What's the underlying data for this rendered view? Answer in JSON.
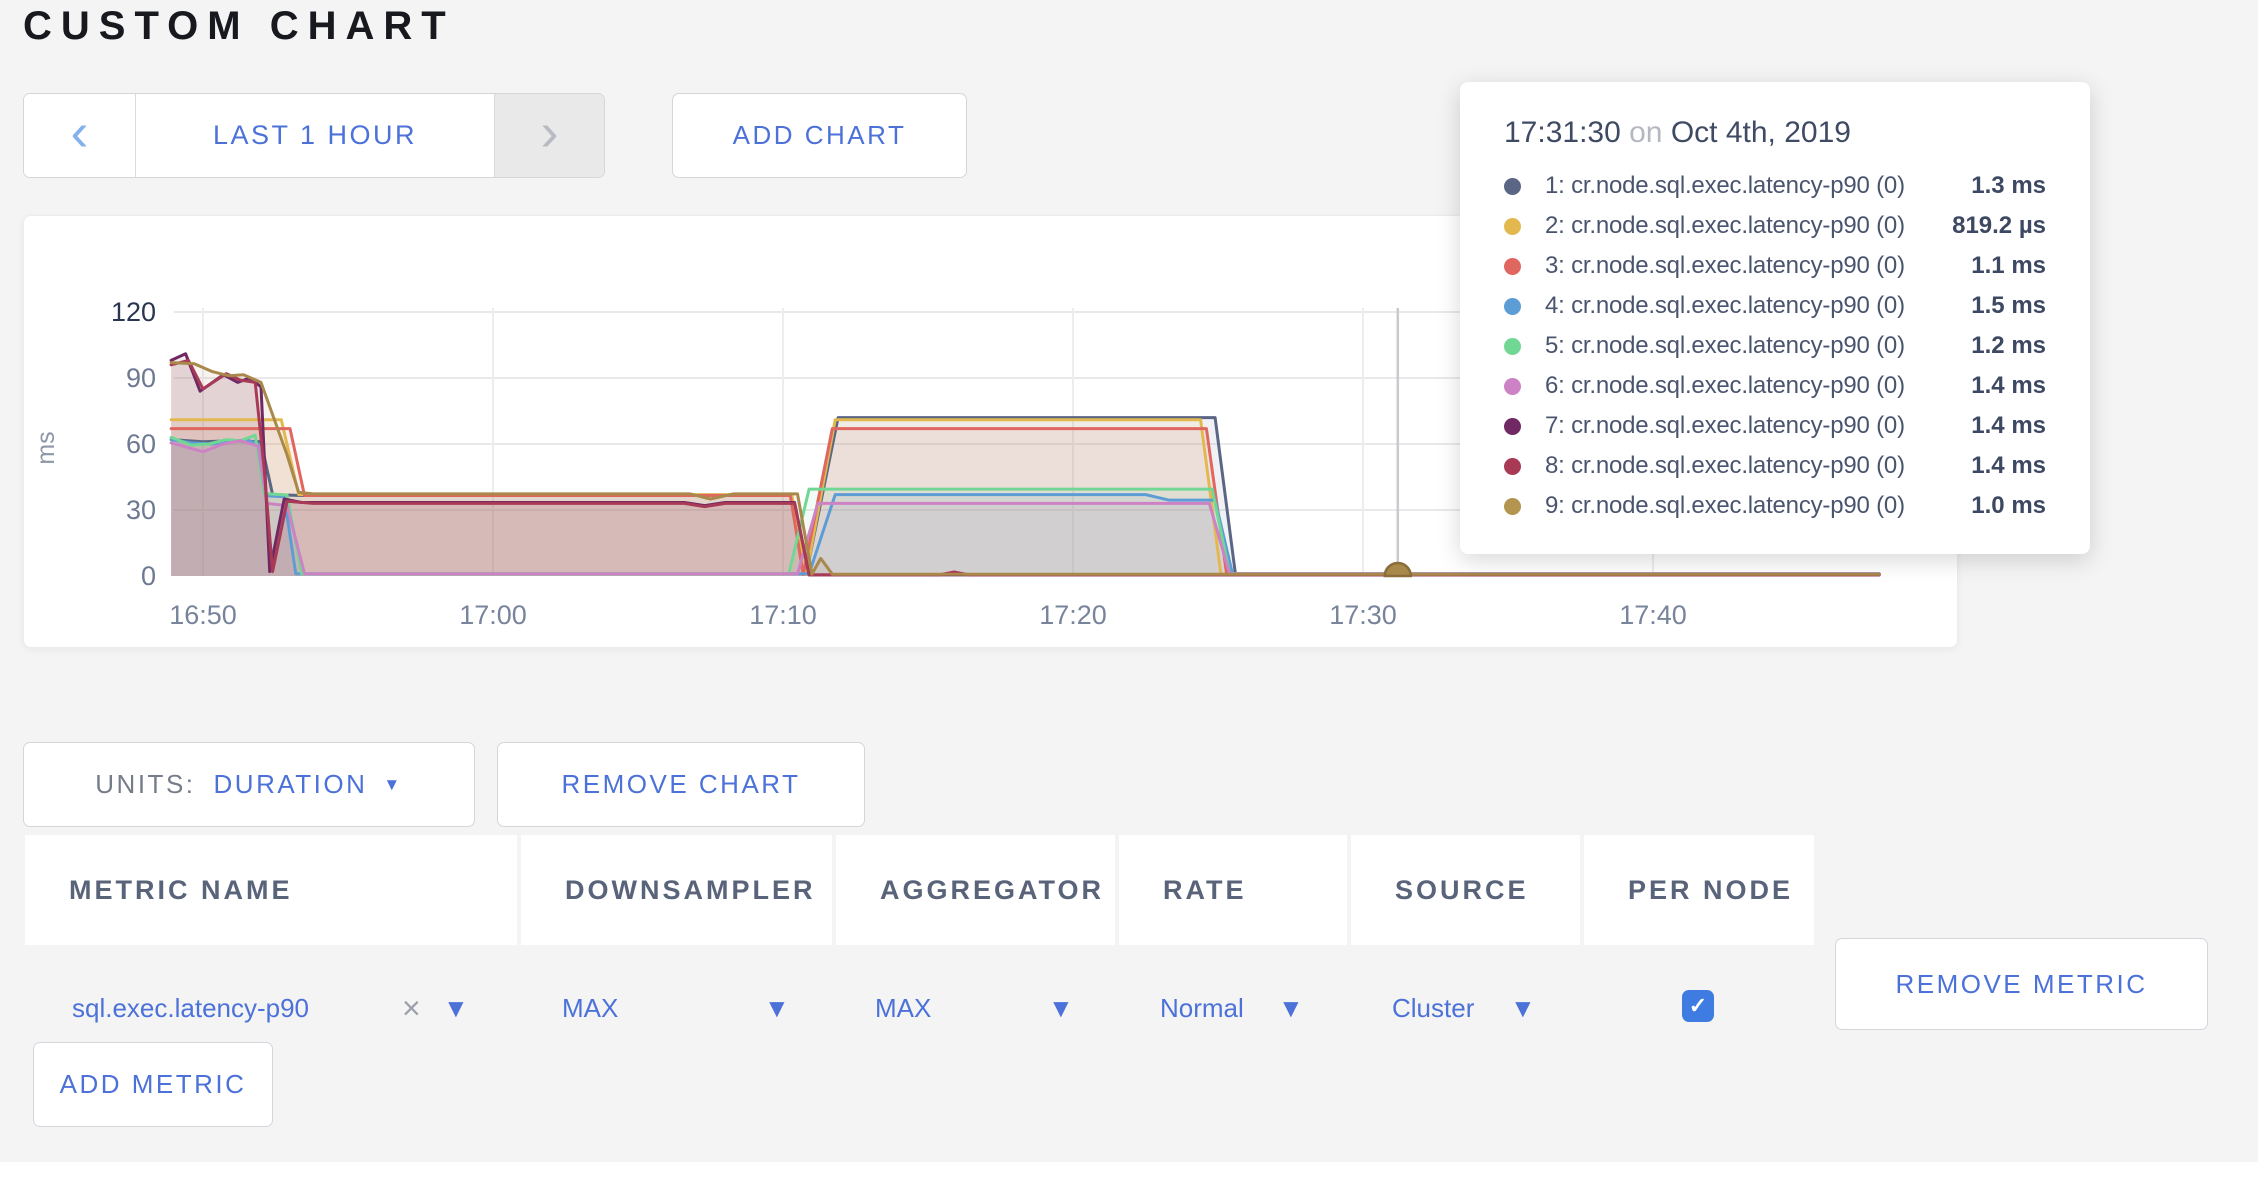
{
  "page": {
    "title": "CUSTOM CHART"
  },
  "icons": {
    "chevron_left": "‹",
    "chevron_right": "›",
    "caret_down": "▼",
    "close": "×",
    "check": "✓"
  },
  "toolbar": {
    "time_window": "LAST 1 HOUR",
    "add_chart": "ADD CHART"
  },
  "tooltip": {
    "time": "17:31:30",
    "on_word": "on",
    "date": "Oct 4th, 2019",
    "rows": [
      {
        "label": "1: cr.node.sql.exec.latency-p90 (0)",
        "value": "1.3 ms",
        "color": "#5a6684"
      },
      {
        "label": "2: cr.node.sql.exec.latency-p90 (0)",
        "value": "819.2 µs",
        "color": "#e3b84f"
      },
      {
        "label": "3: cr.node.sql.exec.latency-p90 (0)",
        "value": "1.1 ms",
        "color": "#e0675f"
      },
      {
        "label": "4: cr.node.sql.exec.latency-p90 (0)",
        "value": "1.5 ms",
        "color": "#5d9dd5"
      },
      {
        "label": "5: cr.node.sql.exec.latency-p90 (0)",
        "value": "1.2 ms",
        "color": "#72d794"
      },
      {
        "label": "6: cr.node.sql.exec.latency-p90 (0)",
        "value": "1.4 ms",
        "color": "#cc82c4"
      },
      {
        "label": "7: cr.node.sql.exec.latency-p90 (0)",
        "value": "1.4 ms",
        "color": "#702963"
      },
      {
        "label": "8: cr.node.sql.exec.latency-p90 (0)",
        "value": "1.4 ms",
        "color": "#a83a55"
      },
      {
        "label": "9: cr.node.sql.exec.latency-p90 (0)",
        "value": "1.0 ms",
        "color": "#b3954f"
      }
    ]
  },
  "chart_controls": {
    "units_label": "UNITS:",
    "units_value": "DURATION",
    "remove_chart": "REMOVE CHART"
  },
  "metrics_table": {
    "headers": [
      "METRIC NAME",
      "DOWNSAMPLER",
      "AGGREGATOR",
      "RATE",
      "SOURCE",
      "PER NODE"
    ],
    "rows": [
      {
        "metric": "sql.exec.latency-p90",
        "downsampler": "MAX",
        "aggregator": "MAX",
        "rate": "Normal",
        "source": "Cluster",
        "per_node": true
      }
    ],
    "remove_metric": "REMOVE METRIC",
    "add_metric": "ADD METRIC"
  },
  "accent_color": "#4c72d9",
  "chart_data": {
    "type": "line",
    "ylabel": "ms",
    "ylim": [
      0,
      120
    ],
    "y_ticks": [
      0,
      30,
      60,
      90,
      120
    ],
    "x_unit": "minutes after 16:00",
    "x_ticks": [
      {
        "t": 50,
        "label": "16:50"
      },
      {
        "t": 60,
        "label": "17:00"
      },
      {
        "t": 70,
        "label": "17:10"
      },
      {
        "t": 80,
        "label": "17:20"
      },
      {
        "t": 90,
        "label": "17:30"
      },
      {
        "t": 100,
        "label": "17:40"
      }
    ],
    "grid": true,
    "crosshair": {
      "t": 91.2,
      "time": "17:31:30",
      "dot_color": "#a8894b"
    },
    "series": [
      {
        "name": "1: cr.node.sql.exec.latency-p90 (0)",
        "color": "#5a6684",
        "points": [
          [
            48.9,
            62
          ],
          [
            50,
            61
          ],
          [
            51,
            61.5
          ],
          [
            52,
            61
          ],
          [
            52.4,
            37
          ],
          [
            53.4,
            36.6
          ],
          [
            70.3,
            36.6
          ],
          [
            70.8,
            1
          ],
          [
            71.9,
            72
          ],
          [
            84.9,
            72
          ],
          [
            85.6,
            1
          ],
          [
            107.8,
            1
          ]
        ]
      },
      {
        "name": "2: cr.node.sql.exec.latency-p90 (0)",
        "color": "#e3b84f",
        "points": [
          [
            48.9,
            71
          ],
          [
            52.7,
            71
          ],
          [
            53.3,
            37
          ],
          [
            70.3,
            37
          ],
          [
            70.8,
            0.8
          ],
          [
            71.8,
            71
          ],
          [
            84.4,
            71
          ],
          [
            85.1,
            0.8
          ],
          [
            107.8,
            0.8
          ]
        ]
      },
      {
        "name": "3: cr.node.sql.exec.latency-p90 (0)",
        "color": "#e0675f",
        "points": [
          [
            48.9,
            67
          ],
          [
            53.0,
            67
          ],
          [
            53.5,
            36.6
          ],
          [
            70.25,
            36.6
          ],
          [
            70.7,
            0.7
          ],
          [
            71.7,
            67
          ],
          [
            84.6,
            67
          ],
          [
            85.3,
            0.7
          ],
          [
            107.8,
            0.7
          ]
        ]
      },
      {
        "name": "4: cr.node.sql.exec.latency-p90 (0)",
        "color": "#5d9dd5",
        "points": [
          [
            48.9,
            62
          ],
          [
            49.6,
            60.5
          ],
          [
            50.3,
            60
          ],
          [
            51.0,
            61
          ],
          [
            51.5,
            62
          ],
          [
            51.9,
            60
          ],
          [
            52.2,
            36.5
          ],
          [
            52.8,
            36
          ],
          [
            53.2,
            1
          ],
          [
            70.9,
            1
          ],
          [
            71.8,
            37
          ],
          [
            82.5,
            37
          ],
          [
            83.3,
            34.5
          ],
          [
            84.9,
            34.5
          ],
          [
            85.5,
            1
          ],
          [
            107.8,
            1
          ]
        ]
      },
      {
        "name": "5: cr.node.sql.exec.latency-p90 (0)",
        "color": "#72d794",
        "points": [
          [
            48.9,
            63
          ],
          [
            49.6,
            59.5
          ],
          [
            50.2,
            60
          ],
          [
            50.8,
            62
          ],
          [
            51.3,
            61.5
          ],
          [
            51.8,
            64
          ],
          [
            52.1,
            37.5
          ],
          [
            52.9,
            36.8
          ],
          [
            53.4,
            1
          ],
          [
            70.2,
            1
          ],
          [
            70.9,
            39.5
          ],
          [
            84.8,
            39.5
          ],
          [
            85.4,
            1
          ],
          [
            107.8,
            1
          ]
        ]
      },
      {
        "name": "6: cr.node.sql.exec.latency-p90 (0)",
        "color": "#cc82c4",
        "points": [
          [
            48.9,
            60.5
          ],
          [
            49.6,
            58
          ],
          [
            50.0,
            56.5
          ],
          [
            50.7,
            60
          ],
          [
            51.3,
            61.5
          ],
          [
            51.9,
            59
          ],
          [
            52.2,
            33
          ],
          [
            52.9,
            32
          ],
          [
            53.5,
            1
          ],
          [
            70.5,
            1
          ],
          [
            71.2,
            33
          ],
          [
            84.7,
            33
          ],
          [
            85.4,
            1
          ],
          [
            107.8,
            1
          ]
        ]
      },
      {
        "name": "7: cr.node.sql.exec.latency-p90 (0)",
        "color": "#702963",
        "points": [
          [
            48.9,
            98
          ],
          [
            49.4,
            101
          ],
          [
            49.9,
            84
          ],
          [
            50.7,
            91.5
          ],
          [
            51.2,
            88
          ],
          [
            51.6,
            90
          ],
          [
            52.0,
            86
          ],
          [
            52.3,
            2
          ],
          [
            52.8,
            35
          ],
          [
            53.4,
            33.4
          ],
          [
            66.6,
            33.4
          ],
          [
            67.3,
            32
          ],
          [
            68,
            33.4
          ],
          [
            70.4,
            33.4
          ],
          [
            70.9,
            0.5
          ],
          [
            107.8,
            0.5
          ]
        ]
      },
      {
        "name": "8: cr.node.sql.exec.latency-p90 (0)",
        "color": "#a83a55",
        "points": [
          [
            48.9,
            96
          ],
          [
            49.5,
            98
          ],
          [
            50.0,
            85
          ],
          [
            50.8,
            92
          ],
          [
            51.3,
            89
          ],
          [
            51.8,
            88
          ],
          [
            52.1,
            50
          ],
          [
            52.4,
            2
          ],
          [
            52.9,
            34
          ],
          [
            53.8,
            33
          ],
          [
            66.6,
            33
          ],
          [
            67.3,
            31.5
          ],
          [
            68,
            33
          ],
          [
            70.4,
            33
          ],
          [
            70.9,
            0.5
          ],
          [
            75.4,
            0.5
          ],
          [
            75.9,
            1.8
          ],
          [
            76.4,
            0.5
          ],
          [
            107.8,
            0.5
          ]
        ]
      },
      {
        "name": "9: cr.node.sql.exec.latency-p90 (0)",
        "color": "#a8894b",
        "points": [
          [
            48.9,
            97
          ],
          [
            49.7,
            96.5
          ],
          [
            50.3,
            93
          ],
          [
            50.9,
            91
          ],
          [
            51.4,
            91.5
          ],
          [
            52.0,
            88
          ],
          [
            52.9,
            55
          ],
          [
            53.3,
            38
          ],
          [
            53.8,
            37.3
          ],
          [
            66.8,
            37.3
          ],
          [
            67.5,
            35
          ],
          [
            68.3,
            37.3
          ],
          [
            70.5,
            37.3
          ],
          [
            71.0,
            0.8
          ],
          [
            71.3,
            8
          ],
          [
            71.7,
            0.8
          ],
          [
            107.8,
            0.8
          ]
        ]
      }
    ]
  }
}
